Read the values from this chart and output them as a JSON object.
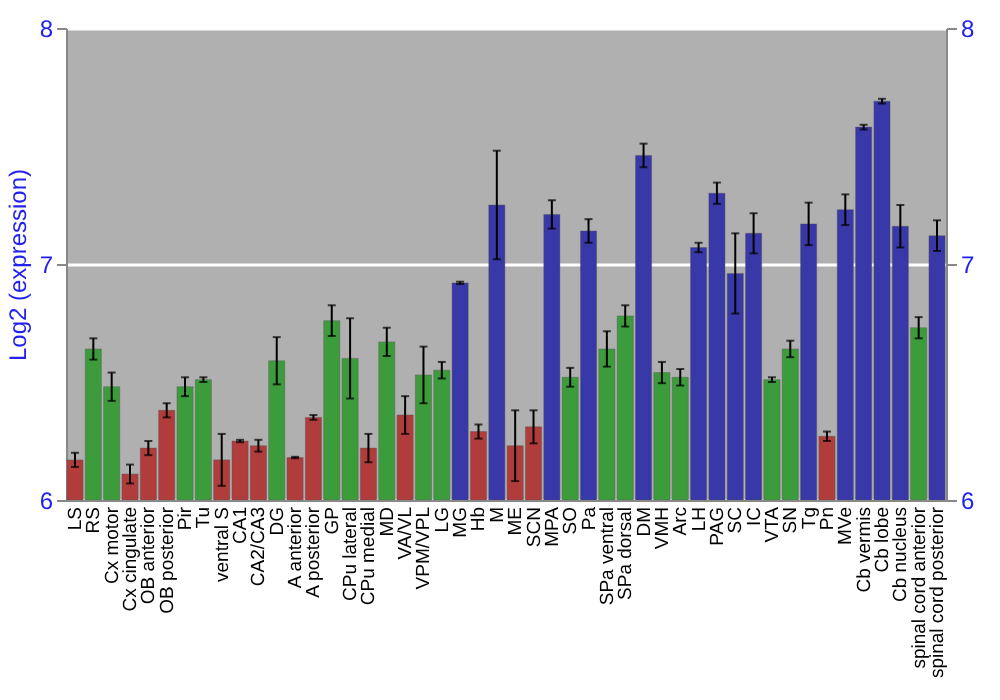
{
  "chart_data": {
    "type": "bar",
    "ylabel": "Log2 (expression)",
    "categories": [
      "LS",
      "RS",
      "Cx motor",
      "Cx cingulate",
      "OB anterior",
      "OB posterior",
      "Pir",
      "Tu",
      "ventral S",
      "CA1",
      "CA2/CA3",
      "DG",
      "A anterior",
      "A posterior",
      "GP",
      "CPu lateral",
      "CPu medial",
      "MD",
      "VA/VL",
      "VPM/VPL",
      "LG",
      "MG",
      "Hb",
      "M",
      "ME",
      "SCN",
      "MPA",
      "SO",
      "Pa",
      "SPa ventral",
      "SPa dorsal",
      "DM",
      "VMH",
      "Arc",
      "LH",
      "PAG",
      "SC",
      "IC",
      "VTA",
      "SN",
      "Tg",
      "Pn",
      "MVe",
      "Cb vermis",
      "Cb lobe",
      "Cb nucleus",
      "spinal cord anterior",
      "spinal cord posterior"
    ],
    "values": [
      6.17,
      6.64,
      6.48,
      6.11,
      6.22,
      6.38,
      6.48,
      6.51,
      6.17,
      6.25,
      6.23,
      6.59,
      6.18,
      6.35,
      6.76,
      6.6,
      6.22,
      6.67,
      6.36,
      6.53,
      6.55,
      6.92,
      6.29,
      7.25,
      6.23,
      6.31,
      7.21,
      6.52,
      7.14,
      6.64,
      6.78,
      7.46,
      6.54,
      6.52,
      7.07,
      7.3,
      6.96,
      7.13,
      6.51,
      6.64,
      7.17,
      6.27,
      7.23,
      7.58,
      7.69,
      7.16,
      6.73,
      7.12
    ],
    "errors": [
      0.03,
      0.045,
      0.06,
      0.04,
      0.03,
      0.03,
      0.04,
      0.01,
      0.11,
      0.005,
      0.025,
      0.1,
      0.003,
      0.01,
      0.065,
      0.17,
      0.06,
      0.06,
      0.08,
      0.12,
      0.035,
      0.005,
      0.03,
      0.23,
      0.15,
      0.07,
      0.06,
      0.04,
      0.05,
      0.075,
      0.045,
      0.05,
      0.045,
      0.035,
      0.02,
      0.045,
      0.17,
      0.085,
      0.01,
      0.035,
      0.09,
      0.02,
      0.065,
      0.01,
      0.01,
      0.09,
      0.045,
      0.065
    ],
    "colors": [
      "#b03c3c",
      "#3c9c3c",
      "#3c9c3c",
      "#b03c3c",
      "#b03c3c",
      "#b03c3c",
      "#3c9c3c",
      "#3c9c3c",
      "#b03c3c",
      "#b03c3c",
      "#b03c3c",
      "#3c9c3c",
      "#b03c3c",
      "#b03c3c",
      "#3c9c3c",
      "#3c9c3c",
      "#b03c3c",
      "#3c9c3c",
      "#b03c3c",
      "#3c9c3c",
      "#3c9c3c",
      "#3838a8",
      "#b03c3c",
      "#3838a8",
      "#b03c3c",
      "#b03c3c",
      "#3838a8",
      "#3c9c3c",
      "#3838a8",
      "#3c9c3c",
      "#3c9c3c",
      "#3838a8",
      "#3c9c3c",
      "#3c9c3c",
      "#3838a8",
      "#3838a8",
      "#3838a8",
      "#3838a8",
      "#3c9c3c",
      "#3c9c3c",
      "#3838a8",
      "#b03c3c",
      "#3838a8",
      "#3838a8",
      "#3838a8",
      "#3838a8",
      "#3c9c3c",
      "#3838a8"
    ],
    "ylim": [
      6,
      8
    ],
    "yticks": [
      6,
      7,
      8
    ],
    "y2lim": [
      6,
      8
    ],
    "y2ticks": [
      6,
      7,
      8
    ],
    "grid": "y"
  }
}
